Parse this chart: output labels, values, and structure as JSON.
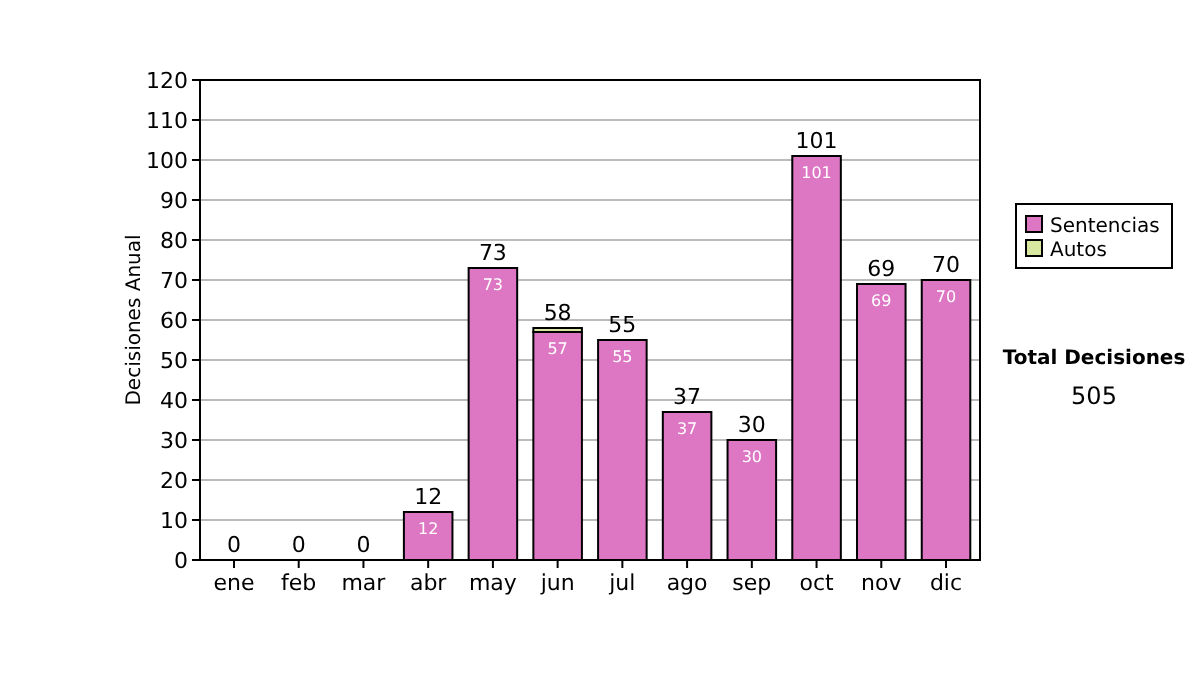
{
  "chart_data": {
    "type": "bar",
    "stacked": true,
    "ylabel": "Decisiones Anual",
    "categories": [
      "ene",
      "feb",
      "mar",
      "abr",
      "may",
      "jun",
      "jul",
      "ago",
      "sep",
      "oct",
      "nov",
      "dic"
    ],
    "series": [
      {
        "name": "Sentencias",
        "color": "#dd77c4",
        "values": [
          0,
          0,
          0,
          12,
          73,
          57,
          55,
          37,
          30,
          101,
          69,
          70
        ],
        "value_labels": [
          null,
          null,
          null,
          "12",
          "73",
          "57",
          "55",
          "37",
          "30",
          "101",
          "69",
          "70"
        ]
      },
      {
        "name": "Autos",
        "color": "#d8e8a0",
        "values": [
          0,
          0,
          0,
          0,
          0,
          1,
          0,
          0,
          0,
          0,
          0,
          0
        ]
      }
    ],
    "totals": [
      "0",
      "0",
      "0",
      "12",
      "73",
      "58",
      "55",
      "37",
      "30",
      "101",
      "69",
      "70"
    ],
    "ylim": [
      0,
      120
    ],
    "yticks": [
      0,
      10,
      20,
      30,
      40,
      50,
      60,
      70,
      80,
      90,
      100,
      110,
      120
    ],
    "grid": "y",
    "legend": "right",
    "annotations": [
      "Total Decisiones",
      "505"
    ]
  }
}
